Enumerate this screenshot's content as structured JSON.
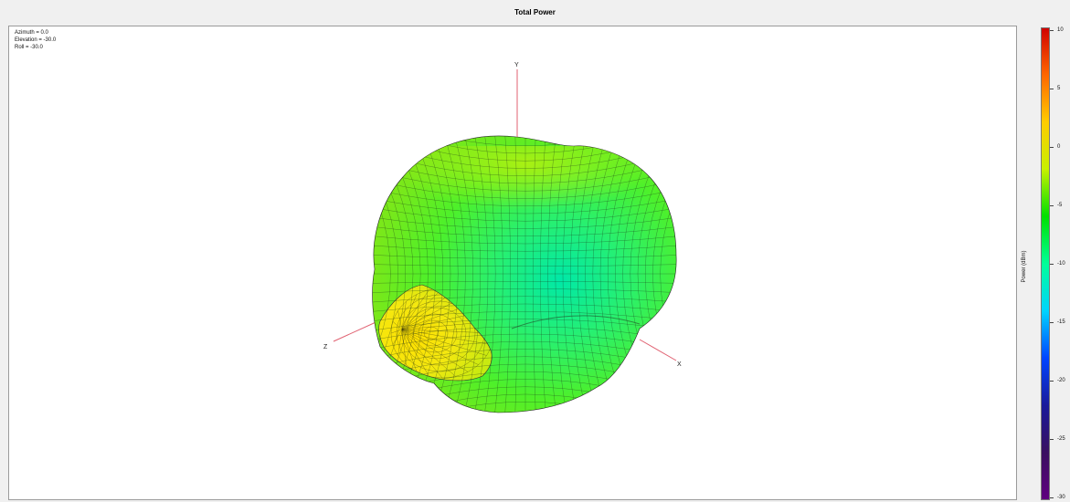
{
  "window": {
    "title": "Total Power"
  },
  "view": {
    "azimuth_text": "Azimuth = 0.0",
    "elevation_text": "Elevation = -30.0",
    "roll_text": "Roll = -30.0"
  },
  "axes": {
    "x_label": "X",
    "y_label": "Y",
    "z_label": "Z"
  },
  "colorbar": {
    "label": "Power (dBm)",
    "min": -30,
    "max": 10,
    "tick_labels": [
      "10",
      "5",
      "0",
      "-5",
      "-10",
      "-15",
      "-20",
      "-25",
      "-30"
    ],
    "colormap": [
      "#d00000",
      "#ff6600",
      "#ffcc00",
      "#c8f000",
      "#00e000",
      "#00ff99",
      "#00d4ff",
      "#0044ff",
      "#1a1a9a",
      "#3a1060",
      "#600080"
    ]
  },
  "chart_data": {
    "type": "3d-surface",
    "title": "Total Power",
    "quantity": "Power (dBm)",
    "value_range": [
      -30,
      10
    ],
    "view_angles": {
      "azimuth": 0.0,
      "elevation": -30.0,
      "roll": -30.0
    },
    "axes_shown": [
      "X",
      "Y",
      "Z"
    ],
    "surface_color_range_observed": [
      "#00e0a0",
      "#ffd000"
    ],
    "peak_direction": "Z",
    "peak_value_approx": 3
  }
}
